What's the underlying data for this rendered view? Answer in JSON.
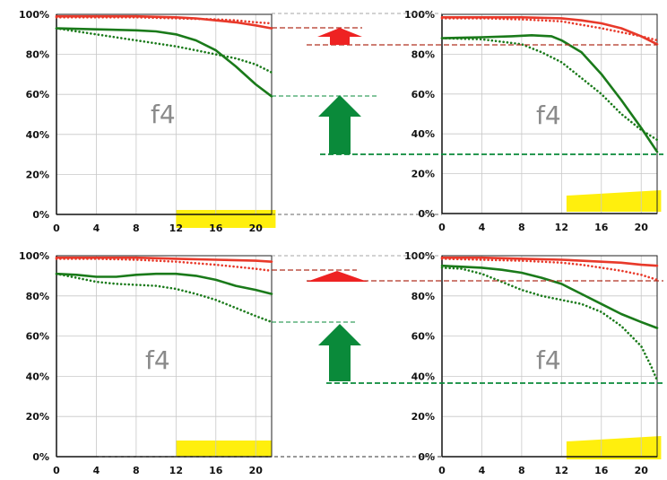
{
  "chart_data": [
    {
      "type": "line",
      "panel": "top-left",
      "label": "f4",
      "x_ticks": [
        0,
        4,
        8,
        12,
        16,
        20
      ],
      "y_ticks": [
        "0%",
        "20%",
        "40%",
        "60%",
        "80%",
        "100%"
      ],
      "xlim": [
        0,
        21.6
      ],
      "ylim": [
        0,
        100
      ],
      "highlight_x_range": [
        12,
        22
      ],
      "colors": {
        "red": "#e8392a",
        "green": "#1a7a1a",
        "highlight": "#ffee00"
      },
      "series": [
        {
          "color": "red",
          "style": "solid",
          "x": [
            0,
            4,
            8,
            12,
            14,
            16,
            18,
            20,
            21.6
          ],
          "y": [
            99,
            99,
            99,
            98.5,
            98,
            97,
            96,
            94.5,
            93
          ]
        },
        {
          "color": "red",
          "style": "dotted",
          "x": [
            0,
            4,
            8,
            12,
            16,
            18,
            20,
            21.6
          ],
          "y": [
            98.5,
            98.5,
            98.5,
            98,
            97.5,
            97,
            96,
            95.5
          ]
        },
        {
          "color": "green",
          "style": "solid",
          "x": [
            0,
            4,
            8,
            10,
            12,
            14,
            16,
            18,
            20,
            21.6
          ],
          "y": [
            93,
            92.5,
            92,
            91.5,
            90,
            87,
            82,
            74,
            65,
            59
          ]
        },
        {
          "color": "green",
          "style": "dotted",
          "x": [
            0,
            4,
            8,
            12,
            14,
            16,
            18,
            20,
            21.6
          ],
          "y": [
            93,
            90,
            87,
            84,
            82,
            80,
            78,
            75,
            71
          ]
        }
      ]
    },
    {
      "type": "line",
      "panel": "top-right",
      "label": "f4",
      "x_ticks": [
        0,
        4,
        8,
        12,
        16,
        20
      ],
      "y_ticks": [
        "0%",
        "20%",
        "40%",
        "60%",
        "80%",
        "100%"
      ],
      "xlim": [
        0,
        21.6
      ],
      "ylim": [
        0,
        100
      ],
      "highlight_x_range": [
        12.5,
        22
      ],
      "colors": {
        "red": "#e8392a",
        "green": "#1a7a1a",
        "highlight": "#ffee00"
      },
      "series": [
        {
          "color": "red",
          "style": "solid",
          "x": [
            0,
            4,
            8,
            12,
            14,
            16,
            18,
            20,
            21.6
          ],
          "y": [
            98.5,
            98.5,
            98.5,
            98,
            97,
            95.5,
            93,
            89,
            85
          ]
        },
        {
          "color": "red",
          "style": "dotted",
          "x": [
            0,
            4,
            8,
            12,
            16,
            18,
            20,
            21.6
          ],
          "y": [
            98,
            98,
            97.5,
            96.5,
            93,
            91,
            89,
            87
          ]
        },
        {
          "color": "green",
          "style": "solid",
          "x": [
            0,
            4,
            7,
            9,
            11,
            12,
            14,
            16,
            18,
            20,
            21.6
          ],
          "y": [
            88,
            88.5,
            89,
            89.5,
            89,
            87,
            81,
            70,
            57,
            43,
            31
          ]
        },
        {
          "color": "green",
          "style": "dotted",
          "x": [
            0,
            4,
            8,
            10,
            12,
            14,
            16,
            18,
            20,
            21.6
          ],
          "y": [
            88,
            87.5,
            85,
            81,
            76,
            68,
            60,
            50,
            42,
            37
          ]
        }
      ]
    },
    {
      "type": "line",
      "panel": "bottom-left",
      "label": "f4",
      "x_ticks": [
        0,
        4,
        8,
        12,
        16,
        20
      ],
      "y_ticks": [
        "0%",
        "20%",
        "40%",
        "60%",
        "80%",
        "100%"
      ],
      "xlim": [
        0,
        21.6
      ],
      "ylim": [
        0,
        100
      ],
      "highlight_x_range": [
        12,
        21.6
      ],
      "colors": {
        "red": "#e8392a",
        "green": "#1a7a1a",
        "highlight": "#ffee00"
      },
      "series": [
        {
          "color": "red",
          "style": "solid",
          "x": [
            0,
            4,
            8,
            12,
            16,
            20,
            21.6
          ],
          "y": [
            99,
            99,
            99,
            98.5,
            98,
            97.5,
            97
          ]
        },
        {
          "color": "red",
          "style": "dotted",
          "x": [
            0,
            4,
            8,
            12,
            16,
            18,
            20,
            21.6
          ],
          "y": [
            98.5,
            98.5,
            98,
            97,
            95.5,
            94.5,
            93.5,
            92.5
          ]
        },
        {
          "color": "green",
          "style": "solid",
          "x": [
            0,
            2,
            4,
            6,
            8,
            10,
            12,
            14,
            16,
            18,
            20,
            21.6
          ],
          "y": [
            91,
            90.5,
            89.5,
            89.5,
            90.5,
            91,
            91,
            90,
            88,
            85,
            83,
            81
          ]
        },
        {
          "color": "green",
          "style": "dotted",
          "x": [
            0,
            2,
            4,
            6,
            8,
            10,
            12,
            14,
            16,
            18,
            20,
            21.6
          ],
          "y": [
            91,
            89,
            87,
            86,
            85.5,
            85,
            83.5,
            81,
            78,
            74,
            70,
            67
          ]
        }
      ]
    },
    {
      "type": "line",
      "panel": "bottom-right",
      "label": "f4",
      "x_ticks": [
        0,
        4,
        8,
        12,
        16,
        20
      ],
      "y_ticks": [
        "0%",
        "20%",
        "40%",
        "60%",
        "80%",
        "100%"
      ],
      "xlim": [
        0,
        21.6
      ],
      "ylim": [
        0,
        100
      ],
      "highlight_x_range": [
        12.5,
        22
      ],
      "colors": {
        "red": "#e8392a",
        "green": "#1a7a1a",
        "highlight": "#ffee00"
      },
      "series": [
        {
          "color": "red",
          "style": "solid",
          "x": [
            0,
            4,
            8,
            12,
            16,
            18,
            20,
            21.6
          ],
          "y": [
            99,
            99,
            98.5,
            98,
            97,
            96.5,
            95.5,
            95
          ]
        },
        {
          "color": "red",
          "style": "dotted",
          "x": [
            0,
            4,
            8,
            12,
            14,
            16,
            18,
            20,
            21.6
          ],
          "y": [
            98.5,
            98,
            97.5,
            96.5,
            95.5,
            94,
            92.5,
            90.5,
            88
          ]
        },
        {
          "color": "green",
          "style": "solid",
          "x": [
            0,
            2,
            4,
            6,
            8,
            10,
            12,
            14,
            16,
            18,
            20,
            21.6
          ],
          "y": [
            95,
            94.5,
            94,
            93,
            91.5,
            89,
            86,
            81,
            76,
            71,
            67,
            64
          ]
        },
        {
          "color": "green",
          "style": "dotted",
          "x": [
            0,
            2,
            4,
            6,
            8,
            10,
            12,
            14,
            16,
            18,
            20,
            21,
            21.6
          ],
          "y": [
            94,
            93.5,
            91,
            87,
            83,
            80,
            78,
            76,
            72,
            65,
            55,
            45,
            38
          ]
        }
      ]
    }
  ],
  "annotations": {
    "colors": {
      "red_ref": "#b03020",
      "green_ref": "#0a8a3a",
      "gray_ref": "#888888",
      "red_arrow": "#ee2222",
      "green_arrow": "#0a8a3a"
    }
  }
}
